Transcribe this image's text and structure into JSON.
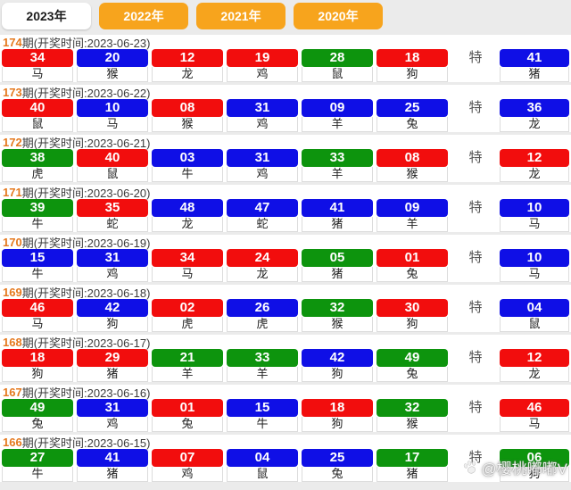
{
  "tabs": [
    {
      "label": "2023年",
      "active": true
    },
    {
      "label": "2022年",
      "active": false
    },
    {
      "label": "2021年",
      "active": false
    },
    {
      "label": "2020年",
      "active": false
    }
  ],
  "special_label": "特",
  "colors": {
    "red": "#f20d0d",
    "blue": "#0f0fe6",
    "green": "#0d940d",
    "tab_inactive_bg": "#f7a41d",
    "period_orange": "#e5791e"
  },
  "rows": [
    {
      "period": "174",
      "info": "期(开奖时间:2023-06-23)",
      "balls": [
        {
          "n": "34",
          "z": "马",
          "c": "red"
        },
        {
          "n": "20",
          "z": "猴",
          "c": "blue"
        },
        {
          "n": "12",
          "z": "龙",
          "c": "red"
        },
        {
          "n": "19",
          "z": "鸡",
          "c": "red"
        },
        {
          "n": "28",
          "z": "鼠",
          "c": "green"
        },
        {
          "n": "18",
          "z": "狗",
          "c": "red"
        }
      ],
      "special": {
        "n": "41",
        "z": "猪",
        "c": "blue"
      }
    },
    {
      "period": "173",
      "info": "期(开奖时间:2023-06-22)",
      "balls": [
        {
          "n": "40",
          "z": "鼠",
          "c": "red"
        },
        {
          "n": "10",
          "z": "马",
          "c": "blue"
        },
        {
          "n": "08",
          "z": "猴",
          "c": "red"
        },
        {
          "n": "31",
          "z": "鸡",
          "c": "blue"
        },
        {
          "n": "09",
          "z": "羊",
          "c": "blue"
        },
        {
          "n": "25",
          "z": "兔",
          "c": "blue"
        }
      ],
      "special": {
        "n": "36",
        "z": "龙",
        "c": "blue"
      }
    },
    {
      "period": "172",
      "info": "期(开奖时间:2023-06-21)",
      "balls": [
        {
          "n": "38",
          "z": "虎",
          "c": "green"
        },
        {
          "n": "40",
          "z": "鼠",
          "c": "red"
        },
        {
          "n": "03",
          "z": "牛",
          "c": "blue"
        },
        {
          "n": "31",
          "z": "鸡",
          "c": "blue"
        },
        {
          "n": "33",
          "z": "羊",
          "c": "green"
        },
        {
          "n": "08",
          "z": "猴",
          "c": "red"
        }
      ],
      "special": {
        "n": "12",
        "z": "龙",
        "c": "red"
      }
    },
    {
      "period": "171",
      "info": "期(开奖时间:2023-06-20)",
      "balls": [
        {
          "n": "39",
          "z": "牛",
          "c": "green"
        },
        {
          "n": "35",
          "z": "蛇",
          "c": "red"
        },
        {
          "n": "48",
          "z": "龙",
          "c": "blue"
        },
        {
          "n": "47",
          "z": "蛇",
          "c": "blue"
        },
        {
          "n": "41",
          "z": "猪",
          "c": "blue"
        },
        {
          "n": "09",
          "z": "羊",
          "c": "blue"
        }
      ],
      "special": {
        "n": "10",
        "z": "马",
        "c": "blue"
      }
    },
    {
      "period": "170",
      "info": "期(开奖时间:2023-06-19)",
      "balls": [
        {
          "n": "15",
          "z": "牛",
          "c": "blue"
        },
        {
          "n": "31",
          "z": "鸡",
          "c": "blue"
        },
        {
          "n": "34",
          "z": "马",
          "c": "red"
        },
        {
          "n": "24",
          "z": "龙",
          "c": "red"
        },
        {
          "n": "05",
          "z": "猪",
          "c": "green"
        },
        {
          "n": "01",
          "z": "兔",
          "c": "red"
        }
      ],
      "special": {
        "n": "10",
        "z": "马",
        "c": "blue"
      }
    },
    {
      "period": "169",
      "info": "期(开奖时间:2023-06-18)",
      "balls": [
        {
          "n": "46",
          "z": "马",
          "c": "red"
        },
        {
          "n": "42",
          "z": "狗",
          "c": "blue"
        },
        {
          "n": "02",
          "z": "虎",
          "c": "red"
        },
        {
          "n": "26",
          "z": "虎",
          "c": "blue"
        },
        {
          "n": "32",
          "z": "猴",
          "c": "green"
        },
        {
          "n": "30",
          "z": "狗",
          "c": "red"
        }
      ],
      "special": {
        "n": "04",
        "z": "鼠",
        "c": "blue"
      }
    },
    {
      "period": "168",
      "info": "期(开奖时间:2023-06-17)",
      "balls": [
        {
          "n": "18",
          "z": "狗",
          "c": "red"
        },
        {
          "n": "29",
          "z": "猪",
          "c": "red"
        },
        {
          "n": "21",
          "z": "羊",
          "c": "green"
        },
        {
          "n": "33",
          "z": "羊",
          "c": "green"
        },
        {
          "n": "42",
          "z": "狗",
          "c": "blue"
        },
        {
          "n": "49",
          "z": "兔",
          "c": "green"
        }
      ],
      "special": {
        "n": "12",
        "z": "龙",
        "c": "red"
      }
    },
    {
      "period": "167",
      "info": "期(开奖时间:2023-06-16)",
      "balls": [
        {
          "n": "49",
          "z": "兔",
          "c": "green"
        },
        {
          "n": "31",
          "z": "鸡",
          "c": "blue"
        },
        {
          "n": "01",
          "z": "兔",
          "c": "red"
        },
        {
          "n": "15",
          "z": "牛",
          "c": "blue"
        },
        {
          "n": "18",
          "z": "狗",
          "c": "red"
        },
        {
          "n": "32",
          "z": "猴",
          "c": "green"
        }
      ],
      "special": {
        "n": "46",
        "z": "马",
        "c": "red"
      }
    },
    {
      "period": "166",
      "info": "期(开奖时间:2023-06-15)",
      "balls": [
        {
          "n": "27",
          "z": "牛",
          "c": "green"
        },
        {
          "n": "41",
          "z": "猪",
          "c": "blue"
        },
        {
          "n": "07",
          "z": "鸡",
          "c": "red"
        },
        {
          "n": "04",
          "z": "鼠",
          "c": "blue"
        },
        {
          "n": "25",
          "z": "兔",
          "c": "blue"
        },
        {
          "n": "17",
          "z": "猪",
          "c": "green"
        }
      ],
      "special": {
        "n": "06",
        "z": "狗",
        "c": "green"
      }
    }
  ],
  "watermark": {
    "icon": "paw-icon",
    "text": "@樱桃嘟嘟V"
  }
}
